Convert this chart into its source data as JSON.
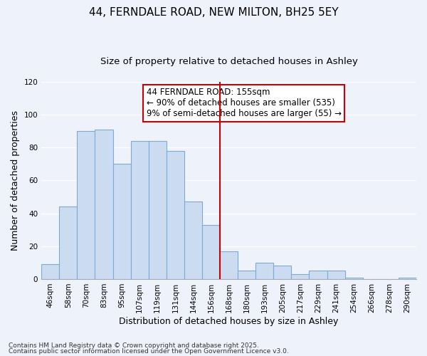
{
  "title": "44, FERNDALE ROAD, NEW MILTON, BH25 5EY",
  "subtitle": "Size of property relative to detached houses in Ashley",
  "xlabel": "Distribution of detached houses by size in Ashley",
  "ylabel": "Number of detached properties",
  "bar_labels": [
    "46sqm",
    "58sqm",
    "70sqm",
    "83sqm",
    "95sqm",
    "107sqm",
    "119sqm",
    "131sqm",
    "144sqm",
    "156sqm",
    "168sqm",
    "180sqm",
    "193sqm",
    "205sqm",
    "217sqm",
    "229sqm",
    "241sqm",
    "254sqm",
    "266sqm",
    "278sqm",
    "290sqm"
  ],
  "bar_heights": [
    9,
    44,
    90,
    91,
    70,
    84,
    84,
    78,
    47,
    33,
    17,
    5,
    10,
    8,
    3,
    5,
    5,
    1,
    0,
    0,
    1
  ],
  "bar_color": "#ccdcf0",
  "bar_edge_color": "#7aaad8",
  "vline_color": "#cc0000",
  "ylim": [
    0,
    120
  ],
  "annotation_title": "44 FERNDALE ROAD: 155sqm",
  "annotation_line1": "← 90% of detached houses are smaller (535)",
  "annotation_line2": "9% of semi-detached houses are larger (55) →",
  "annotation_box_color": "#ffffff",
  "annotation_box_edge": "#cc0000",
  "footnote1": "Contains HM Land Registry data © Crown copyright and database right 2025.",
  "footnote2": "Contains public sector information licensed under the Open Government Licence v3.0.",
  "background_color": "#eef2fb",
  "grid_color": "#ffffff",
  "title_fontsize": 11,
  "subtitle_fontsize": 9.5,
  "axis_label_fontsize": 9,
  "tick_fontsize": 7.5,
  "annotation_fontsize": 8.5,
  "footnote_fontsize": 6.5
}
